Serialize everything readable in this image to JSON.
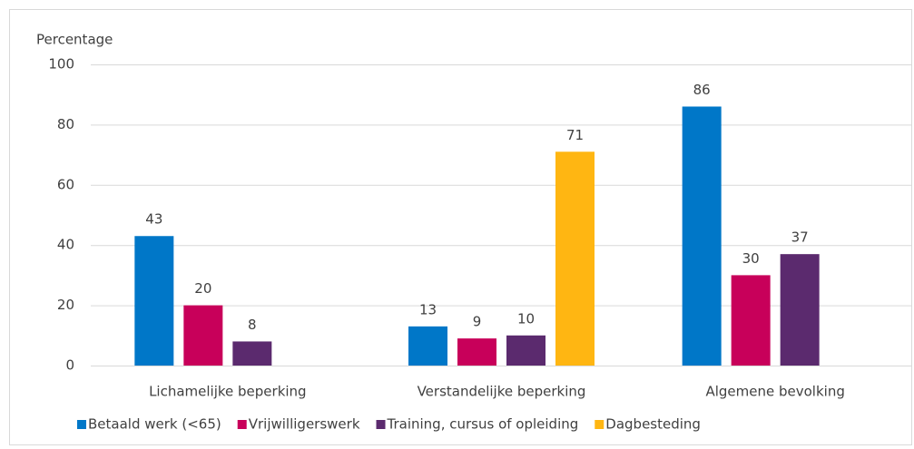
{
  "chart_data": {
    "type": "bar",
    "y_axis_label": "Percentage",
    "categories": [
      "Lichamelijke beperking",
      "Verstandelijke beperking",
      "Algemene bevolking"
    ],
    "series": [
      {
        "name": "Betaald werk (<65)",
        "color": "#0077c8",
        "values": [
          43,
          13,
          86
        ]
      },
      {
        "name": "Vrijwilligerswerk",
        "color": "#c8005a",
        "values": [
          20,
          9,
          30
        ]
      },
      {
        "name": "Training, cursus of opleiding",
        "color": "#5b2a6e",
        "values": [
          8,
          10,
          37
        ]
      },
      {
        "name": "Dagbesteding",
        "color": "#ffb612",
        "values": [
          null,
          71,
          null
        ]
      }
    ],
    "ylim": [
      0,
      100
    ],
    "yticks": [
      0,
      20,
      40,
      60,
      80,
      100
    ],
    "grid": true,
    "legend": "bottom"
  }
}
